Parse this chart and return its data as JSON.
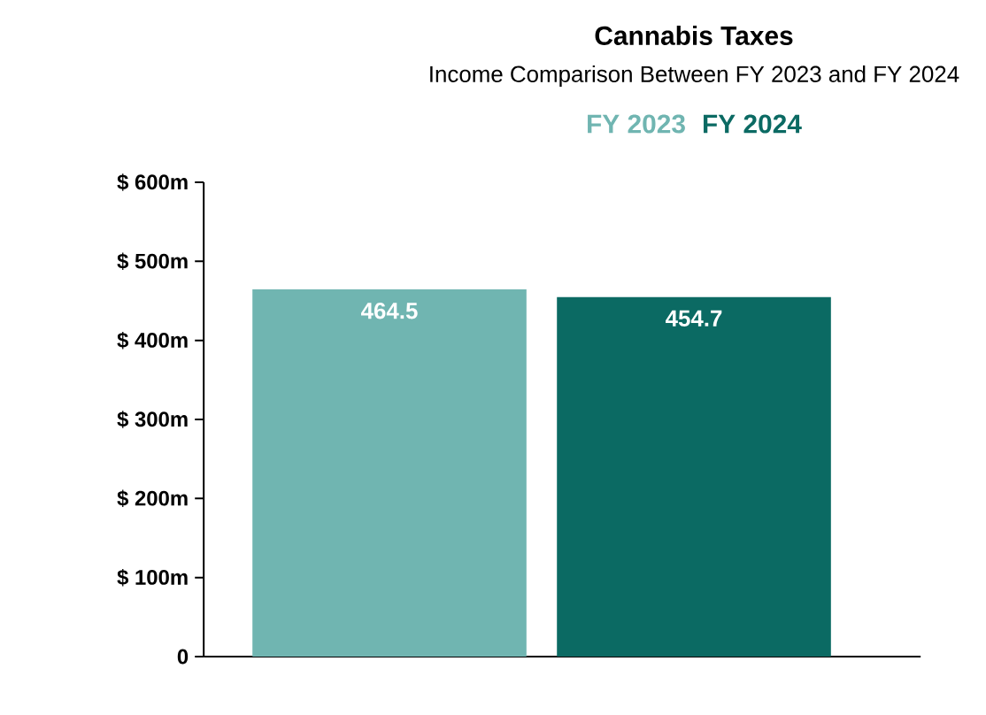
{
  "chart_data": {
    "type": "bar",
    "title": "Cannabis Taxes",
    "subtitle": "Income Comparison Between FY 2023 and FY 2024",
    "categories": [
      null,
      null
    ],
    "series": [
      {
        "name": "FY 2023",
        "color": "#70b5b1",
        "values": [
          464.5,
          null
        ]
      },
      {
        "name": "FY 2024",
        "color": "#0b6a63",
        "values": [
          null,
          454.7
        ]
      }
    ],
    "ylim": [
      0,
      600
    ],
    "yticks": [
      0,
      {
        "value": 100,
        "label": "$ 100m"
      },
      {
        "value": 200,
        "label": "$ 200m"
      },
      {
        "value": 300,
        "label": "$ 300m"
      },
      {
        "value": 400,
        "label": "$ 400m"
      },
      {
        "value": 500,
        "label": "$ 500m"
      },
      {
        "value": 600,
        "label": "$ 600m"
      }
    ],
    "data_labels": true,
    "legend": "top",
    "grid": false
  }
}
